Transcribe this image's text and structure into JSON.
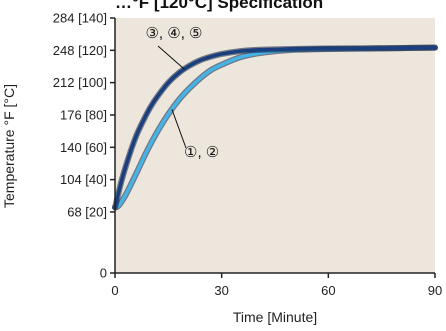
{
  "chart_data": {
    "type": "line",
    "title": "…°F [120°C] Specification",
    "xlabel": "Time [Minute]",
    "ylabel": "Temperature  °F [°C]",
    "xlim": [
      0,
      90
    ],
    "ylim": [
      0,
      284
    ],
    "x_ticks": [
      0,
      30,
      60,
      90
    ],
    "x_tick_labels": [
      "0",
      "30",
      "60",
      "90"
    ],
    "y_ticks": [
      0,
      68,
      104,
      140,
      176,
      212,
      248,
      284
    ],
    "y_tick_labels": [
      "0",
      "68 [20]",
      "104 [40]",
      "140 [60]",
      "176 [80]",
      "212 [100]",
      "248 [120]",
      "284 [140]"
    ],
    "grid": false,
    "background": "#ede6dd",
    "series": [
      {
        "name": "③, ④, ⑤",
        "color": "#1a3f7f",
        "x": [
          0,
          2,
          4,
          6,
          8,
          10,
          12,
          15,
          18,
          21,
          24,
          27,
          30,
          35,
          40,
          45,
          50,
          60,
          70,
          80,
          90
        ],
        "y": [
          73,
          105,
          131,
          153,
          170,
          185,
          197,
          212,
          223,
          231,
          237,
          241,
          244,
          247,
          248.5,
          249,
          249.5,
          250,
          250,
          250.5,
          251
        ]
      },
      {
        "name": "①, ②",
        "color": "#45b3e6",
        "x": [
          0,
          1,
          3,
          6,
          9,
          12,
          15,
          18,
          21,
          24,
          27,
          30,
          35,
          40,
          45,
          50,
          60,
          70,
          80,
          90
        ],
        "y": [
          73,
          75,
          87,
          111,
          136,
          158,
          177,
          193,
          206,
          217,
          226,
          232,
          240,
          244.5,
          247,
          248.5,
          249.5,
          250,
          250.5,
          251
        ]
      }
    ],
    "annotations": [
      {
        "text": "③, ④, ⑤",
        "series": 0,
        "x": 19.5
      },
      {
        "text": "①, ②",
        "series": 1,
        "x": 16
      }
    ]
  }
}
